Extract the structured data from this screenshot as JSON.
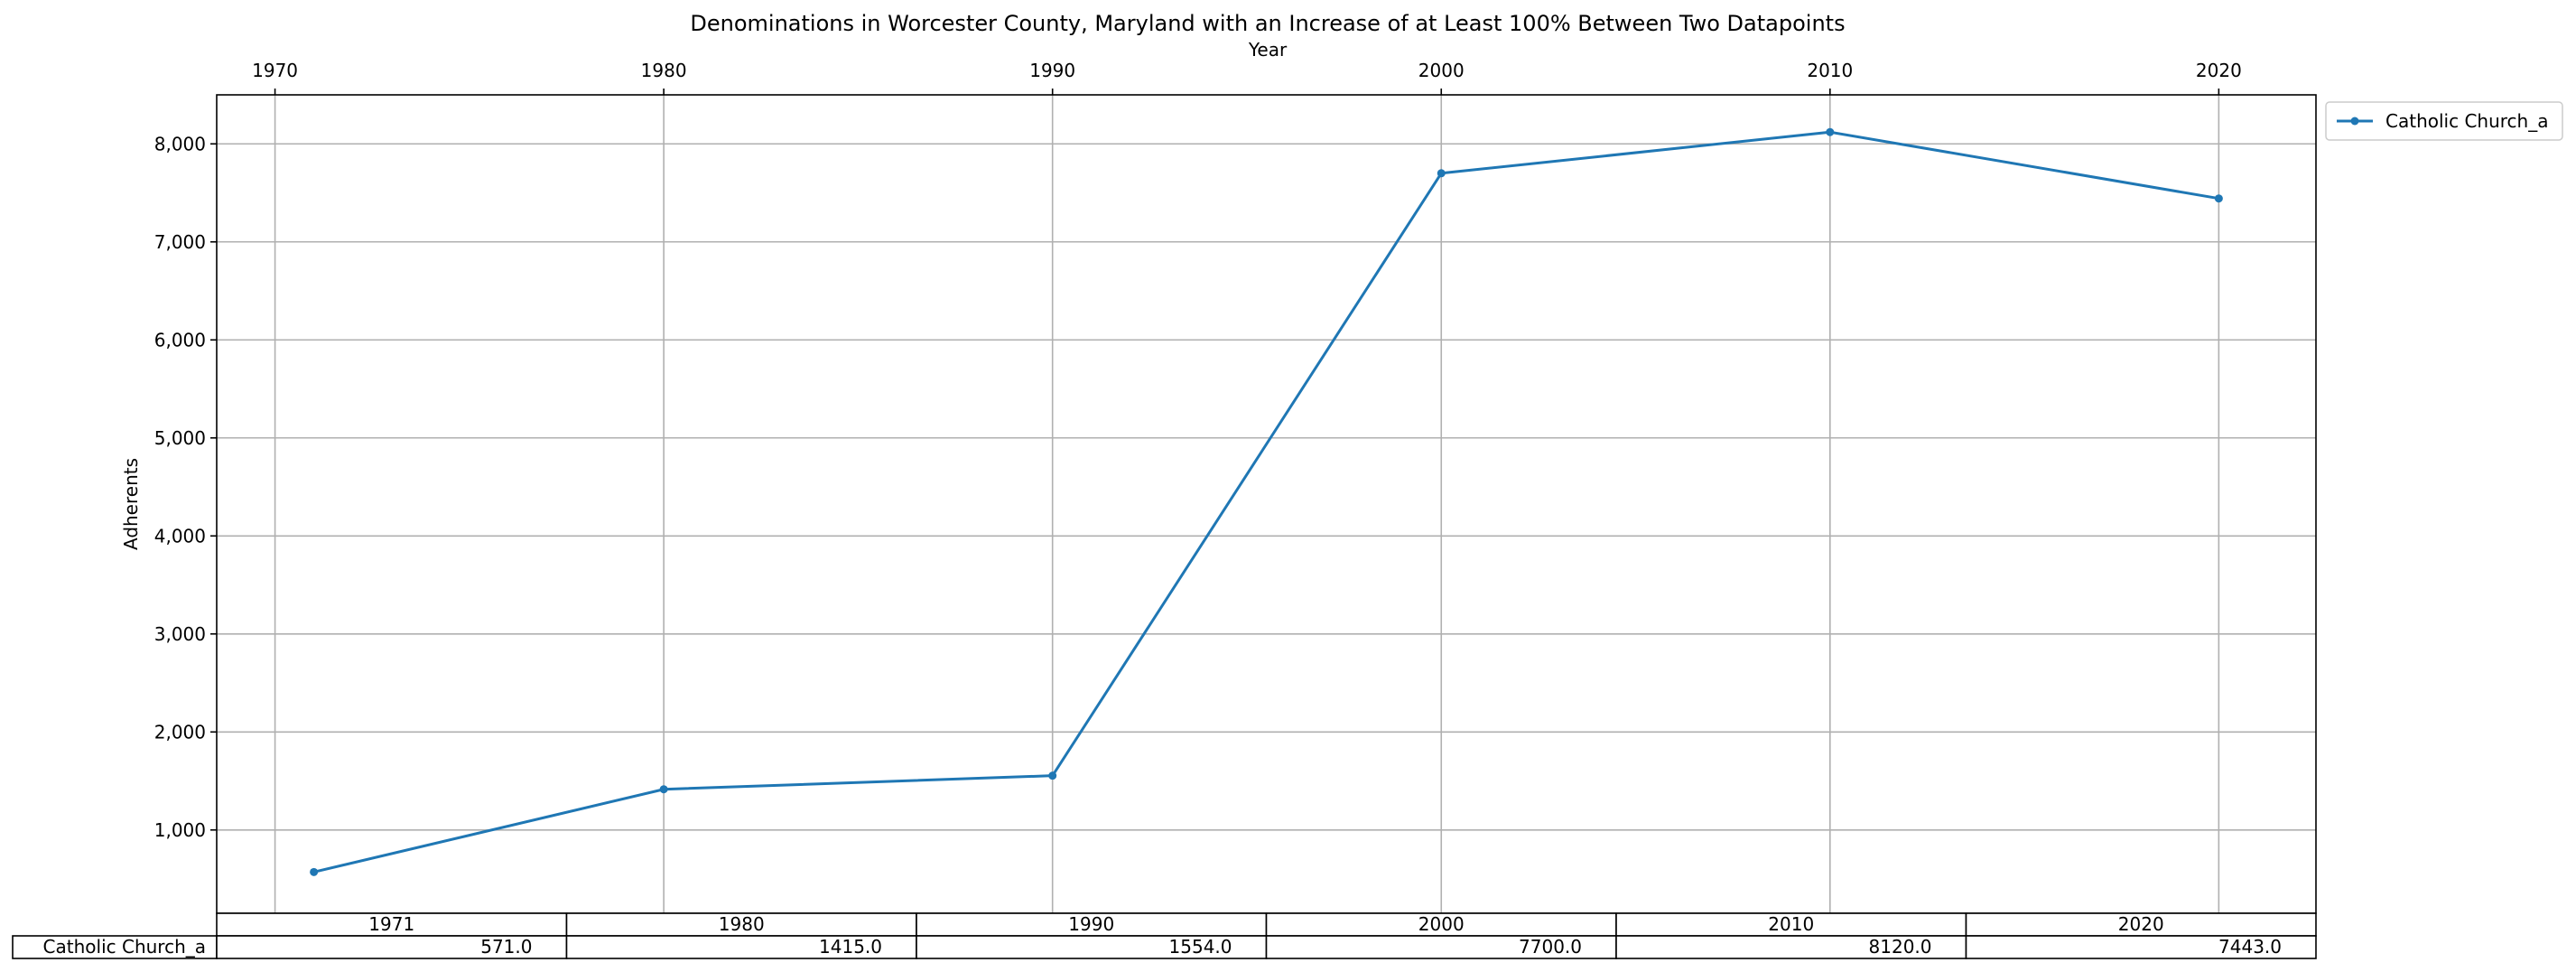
{
  "chart_data": {
    "type": "line",
    "title": "Denominations in Worcester County, Maryland with an Increase of at Least 100% Between Two Datapoints",
    "xlabel": "Year",
    "ylabel": "Adherents",
    "x": [
      1971,
      1980,
      1990,
      2000,
      2010,
      2020
    ],
    "x_ticks": [
      "1970",
      "1980",
      "1990",
      "2000",
      "2010",
      "2020"
    ],
    "x_axis_position": "top",
    "xlim": [
      1968.5,
      2022.5
    ],
    "ylim": [
      150,
      8500
    ],
    "y_ticks": [
      "1,000",
      "2,000",
      "3,000",
      "4,000",
      "5,000",
      "6,000",
      "7,000",
      "8,000"
    ],
    "grid": true,
    "legend_position": "outside-top-right",
    "series": [
      {
        "name": "Catholic Church_a",
        "values": [
          571,
          1415,
          1554,
          7700,
          8120,
          7443
        ],
        "color": "#1f77b4",
        "marker": "dot"
      }
    ],
    "table": {
      "columns": [
        "1971",
        "1980",
        "1990",
        "2000",
        "2010",
        "2020"
      ],
      "rows": [
        {
          "label": "Catholic Church_a",
          "cells": [
            "571.0",
            "1415.0",
            "1554.0",
            "7700.0",
            "8120.0",
            "7443.0"
          ]
        }
      ]
    }
  }
}
